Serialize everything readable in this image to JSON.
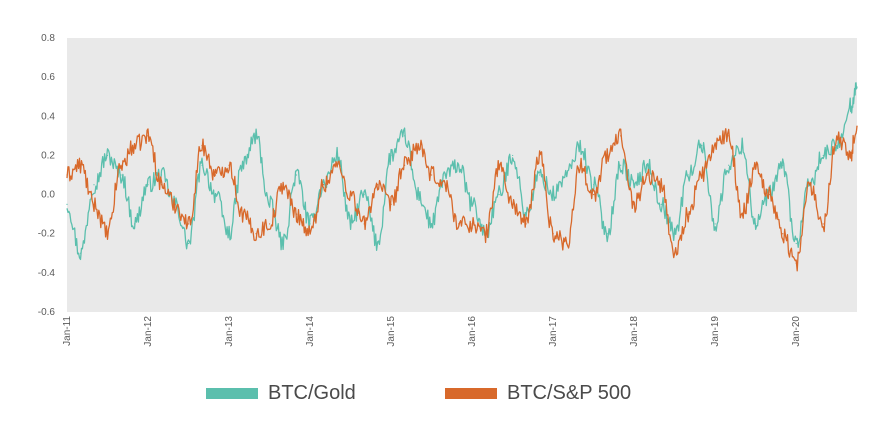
{
  "chart_data": {
    "type": "line",
    "title": "",
    "xlabel": "",
    "ylabel": "",
    "x_ticks": [
      "Jan-11",
      "Jan-12",
      "Jan-13",
      "Jan-14",
      "Jan-15",
      "Jan-16",
      "Jan-17",
      "Jan-18",
      "Jan-19",
      "Jan-20"
    ],
    "x_range": [
      "2011-01",
      "2020-10"
    ],
    "ylim": [
      -0.6,
      0.8
    ],
    "y_ticks": [
      "-0.6",
      "-0.4",
      "-0.2",
      "0.0",
      "0.2",
      "0.4",
      "0.6",
      "0.8"
    ],
    "grid": false,
    "legend_position": "bottom",
    "series": [
      {
        "name": "BTC/Gold",
        "color": "#5bbfad",
        "x": [
          "2011-01",
          "2011-03",
          "2011-05",
          "2011-07",
          "2011-09",
          "2011-11",
          "2012-01",
          "2012-03",
          "2012-05",
          "2012-07",
          "2012-09",
          "2012-11",
          "2013-01",
          "2013-03",
          "2013-05",
          "2013-07",
          "2013-09",
          "2013-11",
          "2014-01",
          "2014-03",
          "2014-05",
          "2014-07",
          "2014-09",
          "2014-11",
          "2015-01",
          "2015-03",
          "2015-05",
          "2015-07",
          "2015-09",
          "2015-11",
          "2016-01",
          "2016-03",
          "2016-05",
          "2016-07",
          "2016-09",
          "2016-11",
          "2017-01",
          "2017-03",
          "2017-05",
          "2017-07",
          "2017-09",
          "2017-11",
          "2018-01",
          "2018-03",
          "2018-05",
          "2018-07",
          "2018-09",
          "2018-11",
          "2019-01",
          "2019-03",
          "2019-05",
          "2019-07",
          "2019-09",
          "2019-11",
          "2020-01",
          "2020-03",
          "2020-05",
          "2020-07",
          "2020-09",
          "2020-10"
        ],
        "values": [
          -0.05,
          -0.3,
          0.05,
          0.2,
          0.1,
          -0.15,
          0.05,
          0.1,
          -0.05,
          -0.25,
          0.15,
          0.0,
          -0.2,
          0.15,
          0.3,
          -0.05,
          -0.25,
          0.1,
          -0.15,
          0.05,
          0.2,
          -0.15,
          0.0,
          -0.25,
          0.2,
          0.3,
          0.0,
          -0.15,
          0.1,
          0.15,
          -0.05,
          -0.2,
          0.0,
          0.2,
          -0.1,
          0.1,
          0.0,
          0.1,
          0.25,
          0.05,
          -0.2,
          0.15,
          0.05,
          0.15,
          -0.05,
          -0.2,
          0.1,
          0.25,
          -0.15,
          0.15,
          0.25,
          -0.15,
          0.0,
          0.15,
          -0.25,
          0.05,
          0.2,
          0.25,
          0.45,
          0.55
        ]
      },
      {
        "name": "BTC/S&P 500",
        "color": "#d8692b",
        "x": [
          "2011-01",
          "2011-03",
          "2011-05",
          "2011-07",
          "2011-09",
          "2011-11",
          "2012-01",
          "2012-03",
          "2012-05",
          "2012-07",
          "2012-09",
          "2012-11",
          "2013-01",
          "2013-03",
          "2013-05",
          "2013-07",
          "2013-09",
          "2013-11",
          "2014-01",
          "2014-03",
          "2014-05",
          "2014-07",
          "2014-09",
          "2014-11",
          "2015-01",
          "2015-03",
          "2015-05",
          "2015-07",
          "2015-09",
          "2015-11",
          "2016-01",
          "2016-03",
          "2016-05",
          "2016-07",
          "2016-09",
          "2016-11",
          "2017-01",
          "2017-03",
          "2017-05",
          "2017-07",
          "2017-09",
          "2017-11",
          "2018-01",
          "2018-03",
          "2018-05",
          "2018-07",
          "2018-09",
          "2018-11",
          "2019-01",
          "2019-03",
          "2019-05",
          "2019-07",
          "2019-09",
          "2019-11",
          "2020-01",
          "2020-03",
          "2020-05",
          "2020-07",
          "2020-09",
          "2020-10"
        ],
        "values": [
          0.1,
          0.15,
          -0.05,
          -0.2,
          0.15,
          0.25,
          0.3,
          0.05,
          -0.05,
          -0.15,
          0.25,
          0.1,
          0.15,
          -0.1,
          -0.2,
          -0.15,
          0.05,
          -0.1,
          -0.2,
          0.05,
          0.15,
          0.0,
          -0.15,
          0.05,
          -0.05,
          0.15,
          0.25,
          0.1,
          0.05,
          -0.15,
          -0.15,
          -0.2,
          0.15,
          -0.05,
          -0.15,
          0.2,
          -0.2,
          -0.25,
          0.15,
          0.0,
          0.2,
          0.3,
          -0.05,
          0.1,
          0.05,
          -0.3,
          -0.1,
          0.1,
          0.25,
          0.3,
          -0.1,
          0.15,
          0.0,
          -0.2,
          -0.35,
          0.05,
          -0.15,
          0.3,
          0.2,
          0.35
        ]
      }
    ]
  }
}
